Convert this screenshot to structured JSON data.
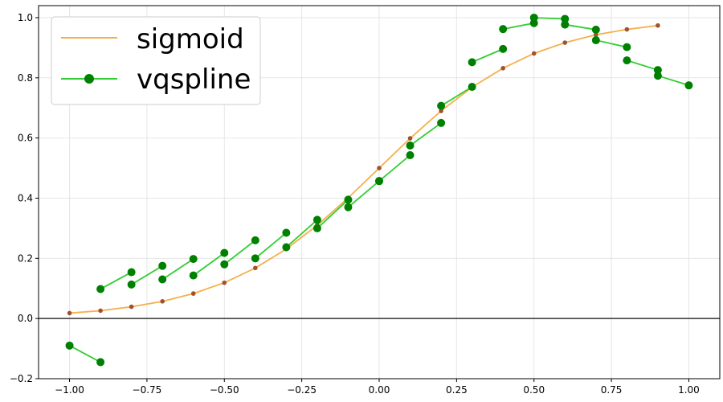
{
  "chart_data": {
    "type": "line",
    "title": "",
    "xlabel": "",
    "ylabel": "",
    "xlim": [
      -1.1,
      1.1
    ],
    "ylim": [
      -0.2,
      1.04
    ],
    "x_ticks": [
      -1.0,
      -0.75,
      -0.5,
      -0.25,
      0.0,
      0.25,
      0.5,
      0.75,
      1.0
    ],
    "x_tick_labels": [
      "−1.00",
      "−0.75",
      "−0.50",
      "−0.25",
      "0.00",
      "0.25",
      "0.50",
      "0.75",
      "1.00"
    ],
    "y_ticks": [
      -0.2,
      0.0,
      0.2,
      0.4,
      0.6,
      0.8,
      1.0
    ],
    "y_tick_labels": [
      "−0.2",
      "0.0",
      "0.2",
      "0.4",
      "0.6",
      "0.8",
      "1.0"
    ],
    "grid": true,
    "horizontal_reference_line": 0.0,
    "legend": {
      "placement": "top-left",
      "entries": [
        "sigmoid",
        "vqspline"
      ]
    },
    "colors": {
      "sigmoid_line": "#f5b04e",
      "sigmoid_markers": "#a0522d",
      "vqspline_line": "#32cd32",
      "vqspline_markers": "#008000",
      "grid": "#e6e6e6",
      "zero_line": "#333333"
    },
    "series": [
      {
        "name": "sigmoid",
        "points": [
          [
            -1.0,
            0.018
          ],
          [
            -0.9,
            0.026
          ],
          [
            -0.8,
            0.039
          ],
          [
            -0.7,
            0.057
          ],
          [
            -0.6,
            0.083
          ],
          [
            -0.5,
            0.119
          ],
          [
            -0.4,
            0.168
          ],
          [
            -0.3,
            0.231
          ],
          [
            -0.2,
            0.31
          ],
          [
            -0.1,
            0.401
          ],
          [
            0.0,
            0.5
          ],
          [
            0.1,
            0.599
          ],
          [
            0.2,
            0.69
          ],
          [
            0.3,
            0.769
          ],
          [
            0.4,
            0.832
          ],
          [
            0.5,
            0.881
          ],
          [
            0.6,
            0.917
          ],
          [
            0.7,
            0.943
          ],
          [
            0.8,
            0.961
          ],
          [
            0.9,
            0.974
          ]
        ]
      },
      {
        "name": "vqspline",
        "segments": [
          [
            [
              -1.0,
              -0.09
            ],
            [
              -0.9,
              -0.145
            ]
          ],
          [
            [
              -0.9,
              0.098
            ],
            [
              -0.8,
              0.154
            ]
          ],
          [
            [
              -0.8,
              0.113
            ],
            [
              -0.7,
              0.175
            ]
          ],
          [
            [
              -0.7,
              0.13
            ],
            [
              -0.6,
              0.198
            ]
          ],
          [
            [
              -0.6,
              0.143
            ],
            [
              -0.5,
              0.218
            ]
          ],
          [
            [
              -0.5,
              0.18
            ],
            [
              -0.4,
              0.26
            ]
          ],
          [
            [
              -0.4,
              0.2
            ],
            [
              -0.3,
              0.285
            ]
          ],
          [
            [
              -0.3,
              0.237
            ],
            [
              -0.2,
              0.328
            ]
          ],
          [
            [
              -0.2,
              0.3
            ],
            [
              -0.1,
              0.395
            ]
          ],
          [
            [
              -0.1,
              0.37
            ],
            [
              0.0,
              0.457
            ]
          ],
          [
            [
              0.0,
              0.457
            ],
            [
              0.1,
              0.543
            ]
          ],
          [
            [
              0.1,
              0.575
            ],
            [
              0.2,
              0.65
            ]
          ],
          [
            [
              0.2,
              0.707
            ],
            [
              0.3,
              0.77
            ]
          ],
          [
            [
              0.3,
              0.852
            ],
            [
              0.4,
              0.896
            ]
          ],
          [
            [
              0.4,
              0.962
            ],
            [
              0.5,
              0.982
            ]
          ],
          [
            [
              0.5,
              1.0
            ],
            [
              0.6,
              0.996
            ]
          ],
          [
            [
              0.6,
              0.977
            ],
            [
              0.7,
              0.96
            ]
          ],
          [
            [
              0.7,
              0.925
            ],
            [
              0.8,
              0.902
            ]
          ],
          [
            [
              0.8,
              0.858
            ],
            [
              0.9,
              0.826
            ]
          ],
          [
            [
              0.9,
              0.807
            ],
            [
              1.0,
              0.775
            ]
          ]
        ]
      }
    ]
  }
}
